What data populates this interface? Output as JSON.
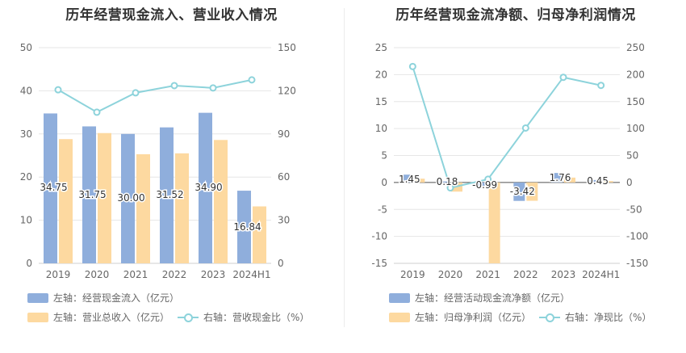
{
  "colors": {
    "bar_blue": "#8faedc",
    "bar_orange": "#fdd9a0",
    "line": "#8dd3db",
    "grid": "#e6e6e6",
    "axis_text": "#666666"
  },
  "left": {
    "title": "历年经营现金流入、营业收入情况",
    "legend": {
      "bar1": "左轴：经营现金流入（亿元）",
      "bar2": "左轴：营业总收入（亿元）",
      "line": "右轴：营收现金比（%）"
    }
  },
  "right": {
    "title": "历年经营现金流净额、归母净利润情况",
    "legend": {
      "bar1": "左轴：经营活动现金流净额（亿元）",
      "bar2": "左轴：归母净利润（亿元）",
      "line": "右轴：净现比（%）"
    }
  },
  "chart_data": [
    {
      "type": "bar",
      "title": "历年经营现金流入、营业收入情况",
      "categories": [
        "2019",
        "2020",
        "2021",
        "2022",
        "2023",
        "2024H1"
      ],
      "ylim_left": [
        0,
        50
      ],
      "yticks_left": [
        0,
        10,
        20,
        30,
        40,
        50
      ],
      "ylim_right": [
        0,
        150
      ],
      "yticks_right": [
        0,
        30,
        60,
        90,
        120,
        150
      ],
      "series": [
        {
          "name": "左轴：经营现金流入（亿元）",
          "axis": "left",
          "kind": "bar",
          "values": [
            34.75,
            31.75,
            30.0,
            31.52,
            34.9,
            16.84
          ],
          "labels": [
            "34.75",
            "31.75",
            "30.00",
            "31.52",
            "34.90",
            "16.84"
          ]
        },
        {
          "name": "左轴：营业总收入（亿元）",
          "axis": "left",
          "kind": "bar",
          "values": [
            28.8,
            30.2,
            25.3,
            25.5,
            28.6,
            13.2
          ]
        },
        {
          "name": "右轴：营收现金比（%）",
          "axis": "right",
          "kind": "line",
          "values": [
            120.7,
            105.1,
            118.6,
            123.6,
            122.0,
            127.6
          ]
        }
      ],
      "grid": true,
      "legend_position": "bottom-left"
    },
    {
      "type": "bar",
      "title": "历年经营现金流净额、归母净利润情况",
      "categories": [
        "2019",
        "2020",
        "2021",
        "2022",
        "2023",
        "2024H1"
      ],
      "ylim_left": [
        -15,
        25
      ],
      "yticks_left": [
        -15,
        -10,
        -5,
        0,
        5,
        10,
        15,
        20,
        25
      ],
      "ylim_right": [
        -150,
        250
      ],
      "yticks_right": [
        -150,
        -100,
        -50,
        0,
        50,
        100,
        150,
        200,
        250
      ],
      "series": [
        {
          "name": "左轴：经营活动现金流净额（亿元）",
          "axis": "left",
          "kind": "bar",
          "values": [
            1.45,
            0.18,
            -0.99,
            -3.42,
            1.76,
            0.45
          ],
          "labels": [
            "1.45",
            "0.18",
            "-0.99",
            "-3.42",
            "1.76",
            "0.45"
          ]
        },
        {
          "name": "左轴：归母净利润（亿元）",
          "axis": "left",
          "kind": "bar",
          "values": [
            0.7,
            -1.7,
            -15.0,
            -3.4,
            0.9,
            0.25
          ]
        },
        {
          "name": "右轴：净现比（%）",
          "axis": "right",
          "kind": "line",
          "values": [
            215,
            -10,
            6,
            101,
            195,
            180
          ]
        }
      ],
      "grid": true,
      "legend_position": "bottom-left"
    }
  ]
}
